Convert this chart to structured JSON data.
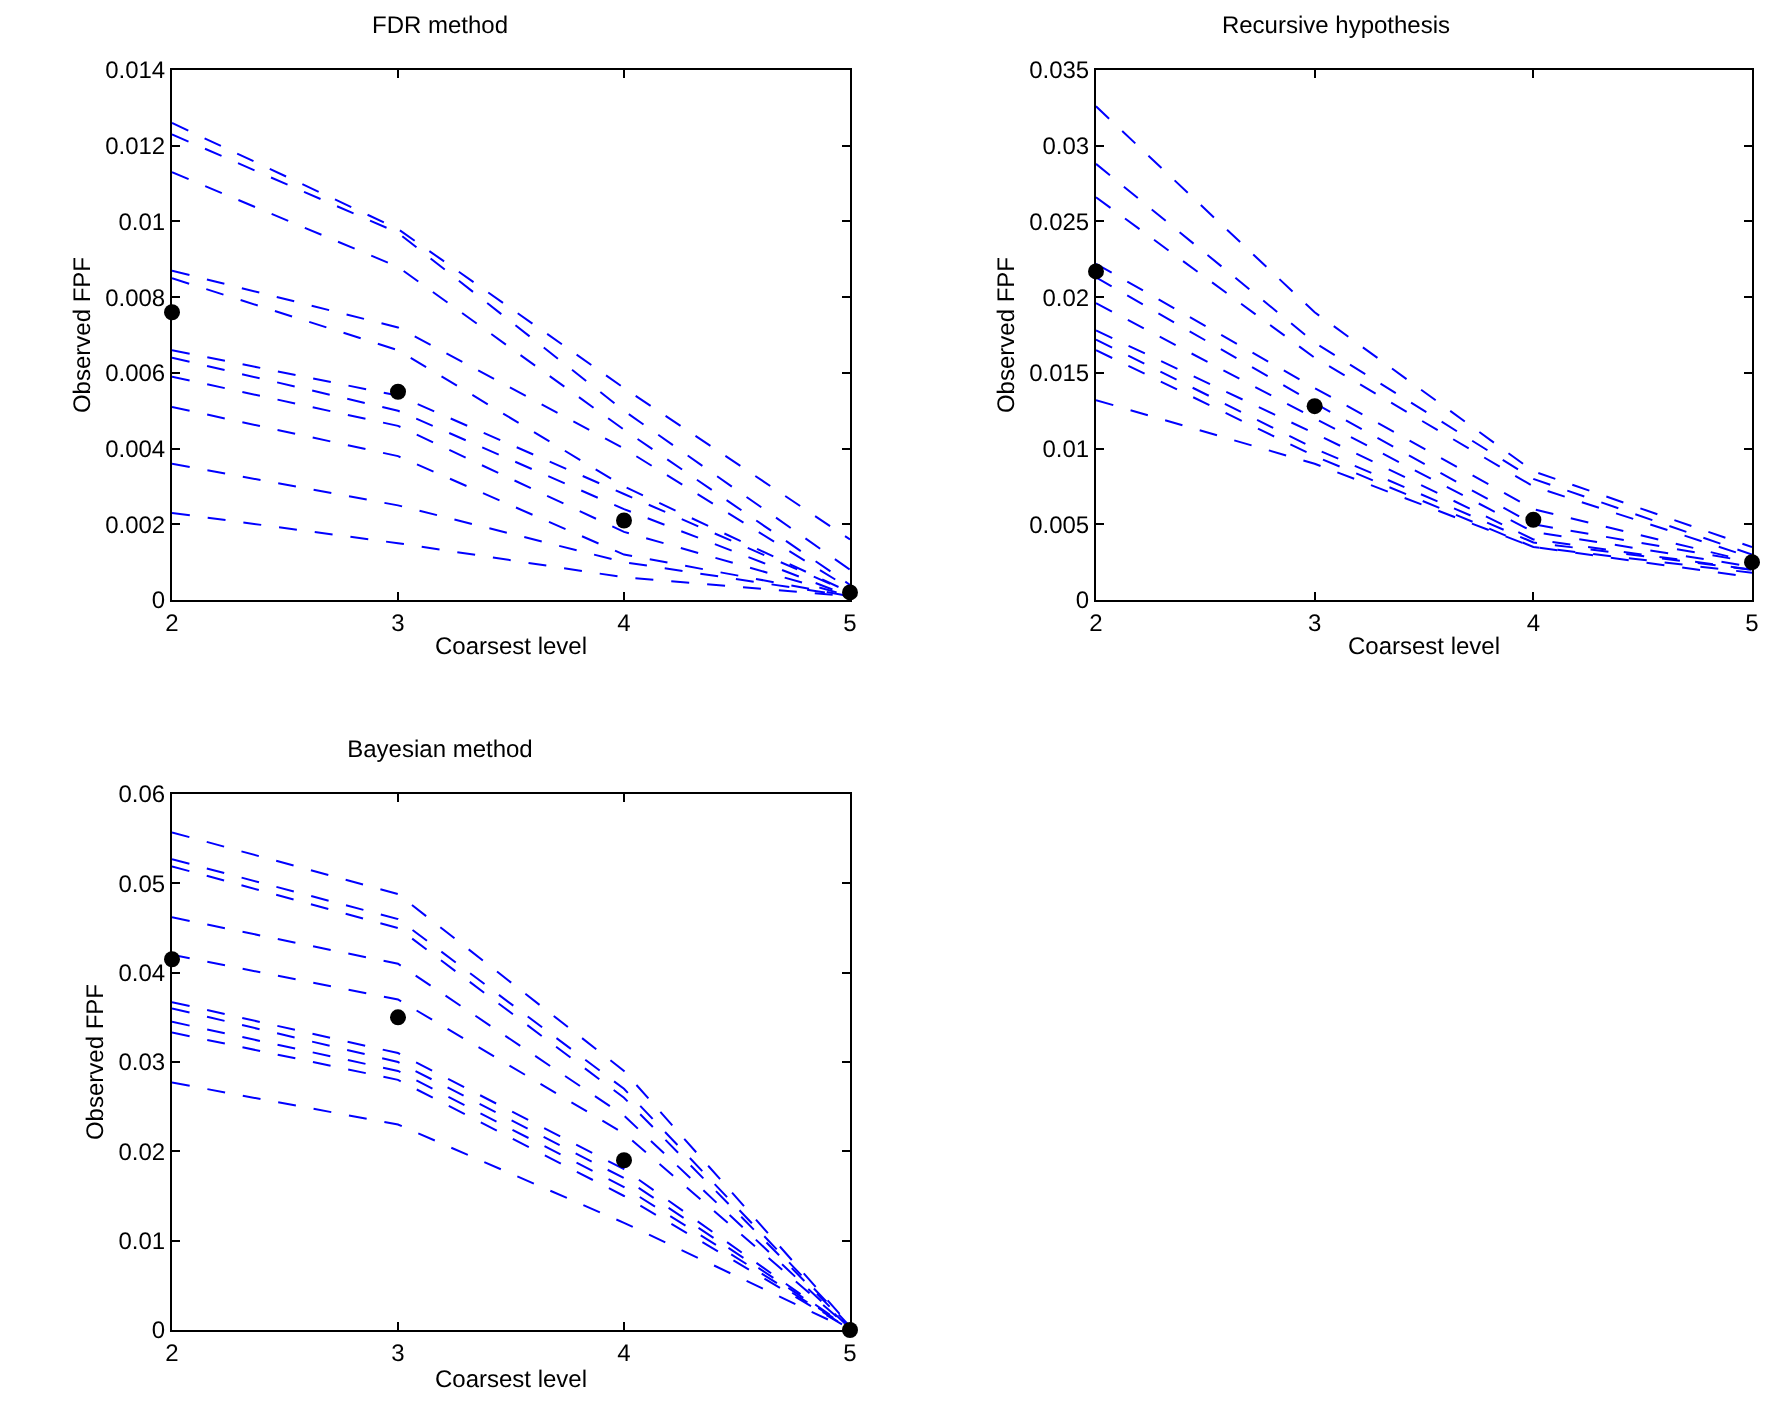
{
  "chart_data": [
    {
      "type": "line",
      "title": "FDR method",
      "xlabel": "Coarsest level",
      "ylabel": "Observed FPF",
      "x": [
        2,
        3,
        4,
        5
      ],
      "xlim": [
        2,
        5
      ],
      "xticks": [
        2,
        3,
        4,
        5
      ],
      "ylim": [
        0,
        0.014
      ],
      "yticks": [
        0,
        0.002,
        0.004,
        0.006,
        0.008,
        0.01,
        0.012,
        0.014
      ],
      "line_style": "dashed",
      "grid": false,
      "series": [
        {
          "color": "#0000ff",
          "values": [
            0.0126,
            0.0098,
            0.0056,
            0.0016
          ]
        },
        {
          "color": "#0000ff",
          "values": [
            0.0123,
            0.0097,
            0.005,
            0.0008
          ]
        },
        {
          "color": "#0000ff",
          "values": [
            0.0113,
            0.0088,
            0.0045,
            0.0004
          ]
        },
        {
          "color": "#0000ff",
          "values": [
            0.0087,
            0.0072,
            0.004,
            0.0003
          ]
        },
        {
          "color": "#0000ff",
          "values": [
            0.0085,
            0.0066,
            0.003,
            0.0002
          ]
        },
        {
          "color": "#0000ff",
          "values": [
            0.0066,
            0.0054,
            0.0028,
            0.0002
          ]
        },
        {
          "color": "#0000ff",
          "values": [
            0.0064,
            0.005,
            0.0024,
            0.0001
          ]
        },
        {
          "color": "#0000ff",
          "values": [
            0.0059,
            0.0046,
            0.0018,
            0.0001
          ]
        },
        {
          "color": "#0000ff",
          "values": [
            0.0051,
            0.0038,
            0.0012,
            0.0001
          ]
        },
        {
          "color": "#0000ff",
          "values": [
            0.0036,
            0.0025,
            0.001,
            0.0001
          ]
        },
        {
          "color": "#0000ff",
          "values": [
            0.0023,
            0.0015,
            0.0006,
            0.0001
          ]
        },
        {
          "type": "scatter",
          "marker": "circle",
          "color": "#000000",
          "values": [
            0.0076,
            0.0055,
            0.0021,
            0.0002
          ]
        }
      ]
    },
    {
      "type": "line",
      "title": "Recursive hypothesis",
      "xlabel": "Coarsest level",
      "ylabel": "Observed FPF",
      "x": [
        2,
        3,
        4,
        5
      ],
      "xlim": [
        2,
        5
      ],
      "xticks": [
        2,
        3,
        4,
        5
      ],
      "ylim": [
        0,
        0.035
      ],
      "yticks": [
        0,
        0.005,
        0.01,
        0.015,
        0.02,
        0.025,
        0.03,
        0.035
      ],
      "line_style": "dashed",
      "grid": false,
      "series": [
        {
          "color": "#0000ff",
          "values": [
            0.0326,
            0.019,
            0.0085,
            0.0035
          ]
        },
        {
          "color": "#0000ff",
          "values": [
            0.0288,
            0.017,
            0.008,
            0.003
          ]
        },
        {
          "color": "#0000ff",
          "values": [
            0.0266,
            0.016,
            0.0075,
            0.0028
          ]
        },
        {
          "color": "#0000ff",
          "values": [
            0.0222,
            0.014,
            0.006,
            0.0025
          ]
        },
        {
          "color": "#0000ff",
          "values": [
            0.0213,
            0.013,
            0.005,
            0.0025
          ]
        },
        {
          "color": "#0000ff",
          "values": [
            0.0196,
            0.012,
            0.0045,
            0.0022
          ]
        },
        {
          "color": "#0000ff",
          "values": [
            0.0178,
            0.011,
            0.004,
            0.002
          ]
        },
        {
          "color": "#0000ff",
          "values": [
            0.0172,
            0.01,
            0.0038,
            0.002
          ]
        },
        {
          "color": "#0000ff",
          "values": [
            0.0165,
            0.0095,
            0.0035,
            0.0018
          ]
        },
        {
          "color": "#0000ff",
          "values": [
            0.0132,
            0.009,
            0.0035,
            0.0015
          ]
        },
        {
          "type": "scatter",
          "marker": "circle",
          "color": "#000000",
          "values": [
            0.0217,
            0.0128,
            0.0053,
            0.0025
          ]
        }
      ]
    },
    {
      "type": "line",
      "title": "Bayesian method",
      "xlabel": "Coarsest level",
      "ylabel": "Observed FPF",
      "x": [
        2,
        3,
        4,
        5
      ],
      "xlim": [
        2,
        5
      ],
      "xticks": [
        2,
        3,
        4,
        5
      ],
      "ylim": [
        0,
        0.06
      ],
      "yticks": [
        0,
        0.01,
        0.02,
        0.03,
        0.04,
        0.05,
        0.06
      ],
      "line_style": "dashed",
      "grid": false,
      "series": [
        {
          "color": "#0000ff",
          "values": [
            0.0557,
            0.0488,
            0.029,
            0.0005
          ]
        },
        {
          "color": "#0000ff",
          "values": [
            0.0527,
            0.046,
            0.027,
            0.0004
          ]
        },
        {
          "color": "#0000ff",
          "values": [
            0.0519,
            0.045,
            0.026,
            0.0003
          ]
        },
        {
          "color": "#0000ff",
          "values": [
            0.0462,
            0.041,
            0.024,
            0.0002
          ]
        },
        {
          "color": "#0000ff",
          "values": [
            0.042,
            0.037,
            0.022,
            0.0002
          ]
        },
        {
          "color": "#0000ff",
          "values": [
            0.0367,
            0.031,
            0.018,
            0.0001
          ]
        },
        {
          "color": "#0000ff",
          "values": [
            0.036,
            0.03,
            0.017,
            0.0001
          ]
        },
        {
          "color": "#0000ff",
          "values": [
            0.0345,
            0.029,
            0.016,
            0.0001
          ]
        },
        {
          "color": "#0000ff",
          "values": [
            0.0333,
            0.028,
            0.015,
            0.0001
          ]
        },
        {
          "color": "#0000ff",
          "values": [
            0.0277,
            0.023,
            0.012,
            0
          ]
        },
        {
          "type": "scatter",
          "marker": "circle",
          "color": "#000000",
          "values": [
            0.0415,
            0.035,
            0.019,
            0
          ]
        }
      ]
    }
  ]
}
